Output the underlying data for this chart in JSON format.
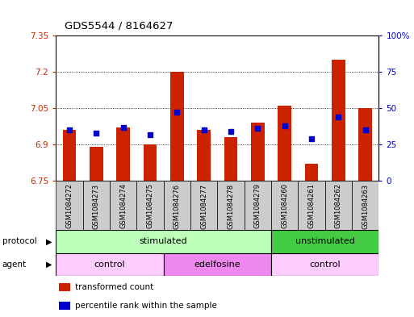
{
  "title": "GDS5544 / 8164627",
  "samples": [
    "GSM1084272",
    "GSM1084273",
    "GSM1084274",
    "GSM1084275",
    "GSM1084276",
    "GSM1084277",
    "GSM1084278",
    "GSM1084279",
    "GSM1084260",
    "GSM1084261",
    "GSM1084262",
    "GSM1084263"
  ],
  "bar_values": [
    6.96,
    6.89,
    6.97,
    6.9,
    7.2,
    6.96,
    6.93,
    6.99,
    7.06,
    6.82,
    7.25,
    7.05
  ],
  "percentile_values": [
    35,
    33,
    37,
    32,
    47,
    35,
    34,
    36,
    38,
    29,
    44,
    35
  ],
  "ylim_left": [
    6.75,
    7.35
  ],
  "ylim_right": [
    0,
    100
  ],
  "yticks_left": [
    6.75,
    6.9,
    7.05,
    7.2,
    7.35
  ],
  "yticks_right": [
    0,
    25,
    50,
    75,
    100
  ],
  "ytick_labels_left": [
    "6.75",
    "6.9",
    "7.05",
    "7.2",
    "7.35"
  ],
  "ytick_labels_right": [
    "0",
    "25",
    "50",
    "75",
    "100%"
  ],
  "bar_color": "#cc2200",
  "dot_color": "#0000cc",
  "bar_baseline": 6.75,
  "protocol_groups": [
    {
      "label": "stimulated",
      "start": 0,
      "end": 8,
      "color": "#bbffbb"
    },
    {
      "label": "unstimulated",
      "start": 8,
      "end": 12,
      "color": "#44cc44"
    }
  ],
  "agent_groups": [
    {
      "label": "control",
      "start": 0,
      "end": 4,
      "color": "#ffccff"
    },
    {
      "label": "edelfosine",
      "start": 4,
      "end": 8,
      "color": "#ee88ee"
    },
    {
      "label": "control",
      "start": 8,
      "end": 12,
      "color": "#ffccff"
    }
  ],
  "legend_items": [
    {
      "label": "transformed count",
      "color": "#cc2200"
    },
    {
      "label": "percentile rank within the sample",
      "color": "#0000cc"
    }
  ],
  "tick_label_color_left": "#cc2200",
  "tick_label_color_right": "#0000cc",
  "bar_width": 0.5,
  "col_bg": "#cccccc"
}
